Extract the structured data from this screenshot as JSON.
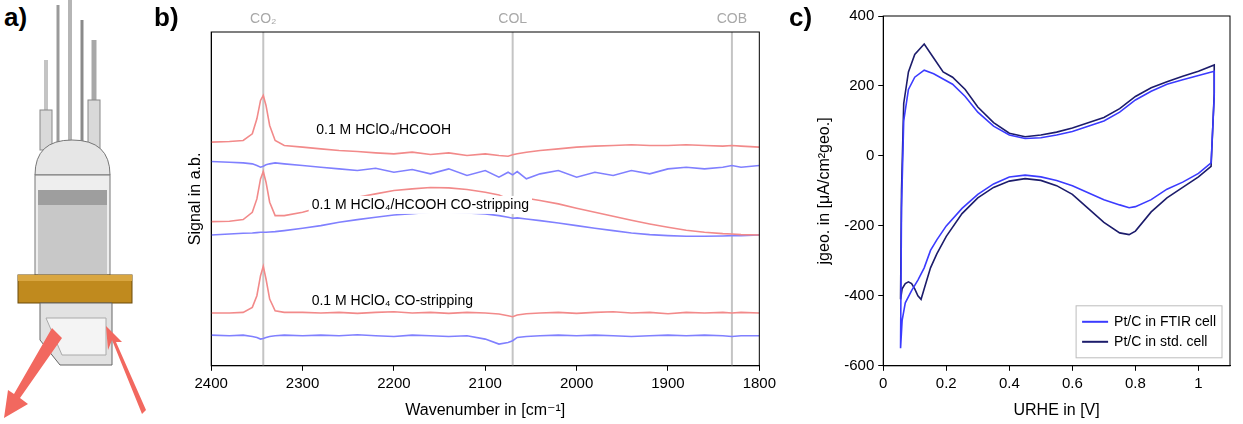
{
  "chart_data": [
    {
      "type": "diagram",
      "title": "a)"
    },
    {
      "type": "line",
      "title": "b)",
      "x_label": "Wavenumber in [cm⁻¹]",
      "y_label": "Signal in a.b.",
      "xlim": [
        2400,
        1800
      ],
      "xticks": [
        2400,
        2300,
        2200,
        2100,
        2000,
        1900,
        1800
      ],
      "ylim": [
        0,
        10
      ],
      "yticks": [],
      "tick_labels": "x",
      "grid": false,
      "x": [
        2400,
        2380,
        2365,
        2355,
        2350,
        2346,
        2343,
        2340,
        2336,
        2330,
        2320,
        2300,
        2280,
        2260,
        2240,
        2220,
        2200,
        2180,
        2160,
        2140,
        2120,
        2100,
        2085,
        2075,
        2070,
        2065,
        2055,
        2040,
        2020,
        2000,
        1980,
        1960,
        1940,
        1920,
        1900,
        1880,
        1860,
        1840,
        1830,
        1820,
        1800
      ],
      "series": [
        {
          "color": "#f28a8a",
          "values": [
            6.7,
            6.72,
            6.75,
            6.95,
            7.4,
            7.95,
            8.1,
            7.8,
            7.2,
            6.75,
            6.6,
            6.55,
            6.5,
            6.45,
            6.42,
            6.38,
            6.35,
            6.4,
            6.33,
            6.38,
            6.3,
            6.35,
            6.3,
            6.28,
            6.32,
            6.35,
            6.4,
            6.45,
            6.5,
            6.55,
            6.58,
            6.6,
            6.62,
            6.6,
            6.6,
            6.62,
            6.6,
            6.58,
            6.6,
            6.58,
            6.55
          ]
        },
        {
          "color": "#8080ff",
          "values": [
            6.12,
            6.1,
            6.08,
            6.05,
            6.0,
            5.95,
            5.98,
            6.02,
            6.05,
            6.08,
            6.05,
            6.0,
            5.95,
            5.9,
            5.85,
            5.92,
            5.8,
            5.88,
            5.75,
            5.9,
            5.7,
            5.85,
            5.65,
            5.8,
            5.72,
            5.82,
            5.6,
            5.75,
            5.85,
            5.65,
            5.8,
            5.7,
            5.85,
            5.75,
            5.9,
            5.95,
            5.9,
            5.95,
            6.0,
            5.95,
            6.0
          ]
        },
        {
          "color": "#f28a8a",
          "values": [
            4.32,
            4.33,
            4.38,
            4.6,
            5.0,
            5.6,
            5.82,
            5.5,
            4.9,
            4.5,
            4.5,
            4.6,
            4.75,
            4.9,
            5.05,
            5.15,
            5.25,
            5.3,
            5.34,
            5.33,
            5.28,
            5.2,
            5.12,
            5.0,
            4.88,
            5.0,
            5.02,
            4.95,
            4.85,
            4.72,
            4.6,
            4.48,
            4.36,
            4.25,
            4.15,
            4.06,
            4.0,
            3.96,
            3.95,
            3.93,
            3.92
          ]
        },
        {
          "color": "#8080ff",
          "values": [
            3.92,
            3.95,
            3.97,
            3.98,
            3.99,
            4.0,
            4.0,
            4.0,
            4.01,
            4.02,
            4.05,
            4.12,
            4.2,
            4.3,
            4.38,
            4.45,
            4.52,
            4.56,
            4.6,
            4.6,
            4.58,
            4.55,
            4.5,
            4.45,
            4.42,
            4.43,
            4.4,
            4.35,
            4.28,
            4.2,
            4.12,
            4.05,
            3.98,
            3.93,
            3.9,
            3.88,
            3.88,
            3.89,
            3.9,
            3.9,
            3.92
          ]
        },
        {
          "color": "#f28a8a",
          "values": [
            1.58,
            1.58,
            1.6,
            1.75,
            2.1,
            2.7,
            2.98,
            2.6,
            2.0,
            1.65,
            1.6,
            1.6,
            1.58,
            1.6,
            1.57,
            1.6,
            1.62,
            1.58,
            1.6,
            1.57,
            1.6,
            1.58,
            1.55,
            1.5,
            1.47,
            1.52,
            1.56,
            1.58,
            1.6,
            1.57,
            1.6,
            1.62,
            1.58,
            1.6,
            1.56,
            1.6,
            1.58,
            1.6,
            1.58,
            1.6,
            1.58
          ]
        },
        {
          "color": "#8080ff",
          "values": [
            0.92,
            0.9,
            0.92,
            0.88,
            0.85,
            0.8,
            0.82,
            0.85,
            0.88,
            0.9,
            0.92,
            0.9,
            0.92,
            0.9,
            0.93,
            0.9,
            0.88,
            0.92,
            0.9,
            0.88,
            0.9,
            0.8,
            0.65,
            0.7,
            0.75,
            0.85,
            0.88,
            0.9,
            0.92,
            0.9,
            0.92,
            0.9,
            0.88,
            0.9,
            0.92,
            0.9,
            0.92,
            0.9,
            0.88,
            0.9,
            0.9
          ]
        }
      ],
      "reference_lines": [
        {
          "x": 2343,
          "label": "CO₂"
        },
        {
          "x": 2070,
          "label": "COL"
        },
        {
          "x": 1830,
          "label": "COB"
        }
      ],
      "annotations": [
        {
          "text": "0.1 M HClO₄/HCOOH",
          "x": 2285,
          "y": 7.05
        },
        {
          "text": "0.1 M HClO₄/HCOOH CO-stripping",
          "x": 2290,
          "y": 4.82
        },
        {
          "text": "0.1 M HClO₄ CO-stripping",
          "x": 2290,
          "y": 1.95
        }
      ]
    },
    {
      "type": "line",
      "title": "c)",
      "x_label": "URHE in [V]",
      "y_label": "jgeo. in [μA/cm²geo.]",
      "xlim": [
        0,
        1.1
      ],
      "xticks": [
        0,
        0.2,
        0.4,
        0.6,
        0.8,
        1
      ],
      "ylim": [
        -600,
        400
      ],
      "yticks": [
        -600,
        -400,
        -200,
        0,
        200,
        400
      ],
      "grid": false,
      "legend": "lower right",
      "series": [
        {
          "name": "Pt/C in FTIR cell",
          "color": "#3b3bff",
          "x": [
            0.055,
            0.058,
            0.065,
            0.08,
            0.1,
            0.13,
            0.16,
            0.19,
            0.22,
            0.26,
            0.3,
            0.35,
            0.4,
            0.45,
            0.5,
            0.55,
            0.6,
            0.65,
            0.7,
            0.75,
            0.8,
            0.85,
            0.9,
            0.95,
            1.0,
            1.05,
            1.05,
            1.04,
            1.0,
            0.95,
            0.9,
            0.85,
            0.8,
            0.78,
            0.75,
            0.7,
            0.65,
            0.6,
            0.55,
            0.5,
            0.45,
            0.4,
            0.35,
            0.3,
            0.25,
            0.2,
            0.17,
            0.15,
            0.13,
            0.11,
            0.09,
            0.07,
            0.06,
            0.055
          ],
          "values": [
            -550,
            -150,
            100,
            190,
            225,
            245,
            235,
            220,
            205,
            170,
            125,
            85,
            60,
            50,
            52,
            60,
            70,
            85,
            100,
            125,
            160,
            185,
            205,
            218,
            230,
            242,
            170,
            -20,
            -50,
            -75,
            -95,
            -125,
            -145,
            -148,
            -140,
            -125,
            -105,
            -85,
            -70,
            -60,
            -55,
            -60,
            -80,
            -110,
            -150,
            -200,
            -240,
            -270,
            -320,
            -355,
            -385,
            -420,
            -470,
            -550
          ]
        },
        {
          "name": "Pt/C in std. cell",
          "color": "#1c1c6b",
          "x": [
            0.055,
            0.058,
            0.065,
            0.08,
            0.1,
            0.13,
            0.16,
            0.19,
            0.22,
            0.26,
            0.3,
            0.35,
            0.4,
            0.45,
            0.5,
            0.55,
            0.6,
            0.65,
            0.7,
            0.75,
            0.8,
            0.85,
            0.9,
            0.95,
            1.0,
            1.05,
            1.05,
            1.04,
            1.0,
            0.95,
            0.9,
            0.85,
            0.8,
            0.78,
            0.75,
            0.7,
            0.65,
            0.6,
            0.55,
            0.5,
            0.45,
            0.4,
            0.35,
            0.3,
            0.25,
            0.2,
            0.17,
            0.15,
            0.13,
            0.12,
            0.11,
            0.1,
            0.09,
            0.08,
            0.07,
            0.06,
            0.055
          ],
          "values": [
            -410,
            -100,
            150,
            240,
            290,
            320,
            280,
            240,
            225,
            190,
            140,
            95,
            65,
            55,
            60,
            68,
            80,
            95,
            110,
            135,
            170,
            195,
            212,
            228,
            242,
            260,
            180,
            -30,
            -60,
            -90,
            -120,
            -160,
            -215,
            -225,
            -220,
            -190,
            -150,
            -110,
            -85,
            -70,
            -65,
            -72,
            -90,
            -120,
            -165,
            -230,
            -280,
            -320,
            -380,
            -410,
            -400,
            -380,
            -365,
            -360,
            -365,
            -380,
            -410
          ]
        }
      ]
    }
  ]
}
